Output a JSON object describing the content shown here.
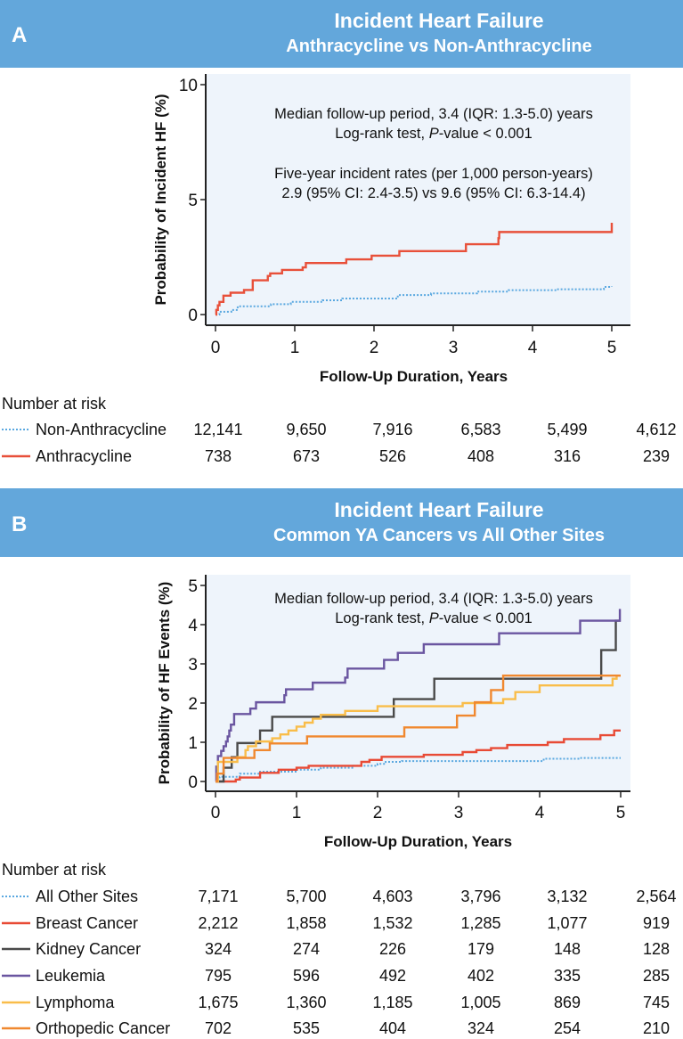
{
  "colors": {
    "header": "#63a7db",
    "plot_bg": "#eef4fb"
  },
  "chart_data": [
    {
      "type": "line",
      "panel": "A",
      "title": "Incident Heart Failure",
      "subtitle": "Anthracycline vs Non-Anthracycline",
      "xlabel": "Follow-Up Duration, Years",
      "ylabel": "Probability of Incident HF (%)",
      "xlim": [
        0,
        5
      ],
      "ylim": [
        0,
        10
      ],
      "xticks": [
        "0",
        "1",
        "2",
        "3",
        "4",
        "5"
      ],
      "yticks": [
        {
          "v": 0,
          "label": "0"
        },
        {
          "v": 5,
          "label": "5"
        },
        {
          "v": 10,
          "label": "10"
        }
      ],
      "annotations": {
        "line1": "Median follow-up period, 3.4 (IQR: 1.3-5.0) years",
        "line2_pre": "Log-rank test, ",
        "line2_italic": "P",
        "line2_post": "-value < 0.001",
        "line3": "Five-year incident rates (per 1,000 person-years)",
        "line4": "2.9 (95% CI: 2.4-3.5) vs 9.6 (95% CI: 6.3-14.4)"
      },
      "series": [
        {
          "name": "Non-Anthracycline",
          "color": "#5aa8e0",
          "dotted": true,
          "x": [
            0,
            0.05,
            0.2,
            0.28,
            0.7,
            0.95,
            1.35,
            1.6,
            2.3,
            2.72,
            3.3,
            3.7,
            4.3,
            4.9,
            5.0
          ],
          "y": [
            0,
            0.12,
            0.2,
            0.36,
            0.45,
            0.55,
            0.62,
            0.7,
            0.85,
            0.92,
            1.0,
            1.06,
            1.1,
            1.2,
            1.22
          ]
        },
        {
          "name": "Anthracycline",
          "color": "#e8503a",
          "dotted": false,
          "x": [
            0,
            0.01,
            0.03,
            0.05,
            0.1,
            0.19,
            0.36,
            0.47,
            0.66,
            0.69,
            0.84,
            1.1,
            1.14,
            1.65,
            1.97,
            2.32,
            3.16,
            3.57,
            3.58,
            5.0,
            5.0
          ],
          "y": [
            0,
            0.2,
            0.4,
            0.55,
            0.82,
            0.95,
            1.07,
            1.49,
            1.68,
            1.79,
            1.94,
            2.05,
            2.24,
            2.4,
            2.56,
            2.76,
            3.06,
            3.32,
            3.59,
            3.59,
            3.99
          ]
        }
      ],
      "risk_table": {
        "heading": "Number at risk",
        "rows": [
          {
            "label": "Non-Anthracycline",
            "values": [
              "12,141",
              "9,650",
              "7,916",
              "6,583",
              "5,499",
              "4,612"
            ]
          },
          {
            "label": "Anthracycline",
            "values": [
              "738",
              "673",
              "526",
              "408",
              "316",
              "239"
            ]
          }
        ]
      }
    },
    {
      "type": "line",
      "panel": "B",
      "title": "Incident Heart Failure",
      "subtitle": "Common YA Cancers vs All Other Sites",
      "xlabel": "Follow-Up Duration, Years",
      "ylabel": "Probability of HF Events (%)",
      "xlim": [
        0,
        5
      ],
      "ylim": [
        0,
        5
      ],
      "xticks": [
        "0",
        "1",
        "2",
        "3",
        "4",
        "5"
      ],
      "yticks": [
        {
          "v": 0,
          "label": "0"
        },
        {
          "v": 1,
          "label": "1"
        },
        {
          "v": 2,
          "label": "2"
        },
        {
          "v": 3,
          "label": "3"
        },
        {
          "v": 4,
          "label": "4"
        },
        {
          "v": 5,
          "label": "5"
        }
      ],
      "annotations": {
        "line1": "Median follow-up period, 3.4 (IQR: 1.3-5.0) years",
        "line2_pre": "Log-rank test, ",
        "line2_italic": "P",
        "line2_post": "-value < 0.001"
      },
      "series": [
        {
          "name": "All Other Sites",
          "color": "#5aa8e0",
          "dotted": true,
          "x": [
            0,
            0.05,
            0.3,
            0.55,
            1.0,
            1.3,
            1.7,
            2.0,
            2.1,
            2.3,
            4.05,
            4.5,
            5.0
          ],
          "y": [
            0,
            0.12,
            0.2,
            0.25,
            0.3,
            0.35,
            0.4,
            0.45,
            0.5,
            0.52,
            0.58,
            0.6,
            0.6
          ]
        },
        {
          "name": "Breast Cancer",
          "color": "#e84a35",
          "dotted": false,
          "x": [
            0,
            0.25,
            0.3,
            0.55,
            0.78,
            1.0,
            1.15,
            1.8,
            1.9,
            2.05,
            2.57,
            3.05,
            3.22,
            3.4,
            3.6,
            4.1,
            4.3,
            4.75,
            4.92,
            5.0
          ],
          "y": [
            0,
            0.05,
            0.1,
            0.22,
            0.3,
            0.35,
            0.4,
            0.5,
            0.55,
            0.63,
            0.68,
            0.75,
            0.8,
            0.85,
            0.93,
            1.0,
            1.08,
            1.18,
            1.3,
            1.3
          ]
        },
        {
          "name": "Kidney Cancer",
          "color": "#4a4a4a",
          "dotted": false,
          "x": [
            0,
            0.1,
            0.2,
            0.27,
            0.55,
            0.7,
            2.2,
            2.7,
            4.76,
            4.94,
            5.0
          ],
          "y": [
            0,
            0.35,
            0.62,
            0.98,
            1.3,
            1.65,
            2.1,
            2.62,
            3.35,
            4.1,
            4.1
          ]
        },
        {
          "name": "Leukemia",
          "color": "#6a55a0",
          "dotted": false,
          "x": [
            0,
            0.01,
            0.03,
            0.07,
            0.1,
            0.13,
            0.15,
            0.17,
            0.19,
            0.23,
            0.43,
            0.5,
            0.85,
            0.87,
            1.2,
            1.6,
            1.63,
            2.08,
            2.25,
            2.57,
            3.5,
            4.5,
            4.99,
            4.99
          ],
          "y": [
            0,
            0.38,
            0.65,
            0.78,
            0.9,
            1.02,
            1.15,
            1.3,
            1.45,
            1.72,
            1.86,
            2.02,
            2.2,
            2.35,
            2.52,
            2.65,
            2.88,
            3.1,
            3.28,
            3.5,
            3.78,
            4.1,
            4.1,
            4.4
          ]
        },
        {
          "name": "Lymphoma",
          "color": "#f9bd4a",
          "dotted": false,
          "x": [
            0,
            0.03,
            0.27,
            0.37,
            0.4,
            0.5,
            0.7,
            0.8,
            0.9,
            1.0,
            1.1,
            1.2,
            1.3,
            1.6,
            2.0,
            3.05,
            3.55,
            3.7,
            4.0,
            4.9,
            4.95,
            5.0
          ],
          "y": [
            0,
            0.5,
            0.62,
            0.8,
            0.9,
            1.02,
            1.1,
            1.2,
            1.3,
            1.4,
            1.5,
            1.6,
            1.7,
            1.8,
            1.92,
            2.0,
            2.1,
            2.28,
            2.45,
            2.62,
            2.7,
            2.7
          ]
        },
        {
          "name": "Orthopedic Cancer",
          "color": "#f0882f",
          "dotted": false,
          "x": [
            0,
            0.02,
            0.1,
            0.48,
            0.67,
            1.13,
            2.33,
            2.98,
            3.2,
            3.4,
            3.55,
            5.0
          ],
          "y": [
            0,
            0.2,
            0.6,
            0.8,
            0.97,
            1.15,
            1.38,
            1.68,
            2.02,
            2.33,
            2.7,
            2.7
          ]
        }
      ],
      "risk_table": {
        "heading": "Number at risk",
        "rows": [
          {
            "label": "All Other Sites",
            "values": [
              "7,171",
              "5,700",
              "4,603",
              "3,796",
              "3,132",
              "2,564"
            ]
          },
          {
            "label": "Breast Cancer",
            "values": [
              "2,212",
              "1,858",
              "1,532",
              "1,285",
              "1,077",
              "919"
            ]
          },
          {
            "label": "Kidney Cancer",
            "values": [
              "324",
              "274",
              "226",
              "179",
              "148",
              "128"
            ]
          },
          {
            "label": "Leukemia",
            "values": [
              "795",
              "596",
              "492",
              "402",
              "335",
              "285"
            ]
          },
          {
            "label": "Lymphoma",
            "values": [
              "1,675",
              "1,360",
              "1,185",
              "1,005",
              "869",
              "745"
            ]
          },
          {
            "label": "Orthopedic Cancer",
            "values": [
              "702",
              "535",
              "404",
              "324",
              "254",
              "210"
            ]
          }
        ]
      }
    }
  ]
}
